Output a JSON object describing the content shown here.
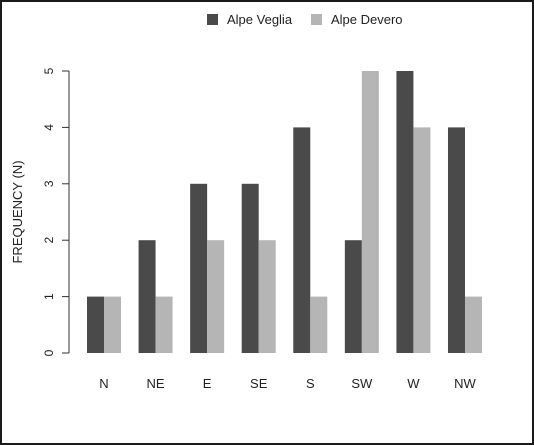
{
  "chart_data": {
    "type": "bar",
    "categories": [
      "N",
      "NE",
      "E",
      "SE",
      "S",
      "SW",
      "W",
      "NW"
    ],
    "series": [
      {
        "name": "Alpe Veglia",
        "values": [
          1,
          2,
          3,
          3,
          4,
          2,
          5,
          4
        ],
        "color": "#4a4a4a"
      },
      {
        "name": "Alpe Devero",
        "values": [
          1,
          1,
          2,
          2,
          1,
          5,
          4,
          1
        ],
        "color": "#b5b5b5"
      }
    ],
    "ylabel": "FREQUENCY (N)",
    "xlabel": "",
    "ylim": [
      0,
      5
    ],
    "yticks": [
      0,
      1,
      2,
      3,
      4,
      5
    ],
    "legend_position": "top-center",
    "grid": false
  }
}
